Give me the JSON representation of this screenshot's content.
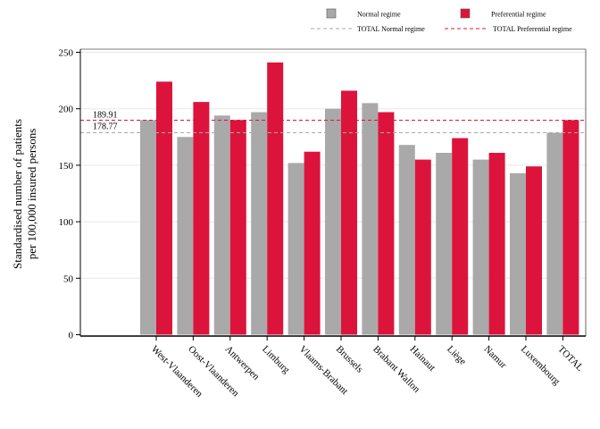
{
  "chart_data": {
    "type": "bar",
    "title": "",
    "xlabel": "",
    "ylabel": "Standardised number of patients per 100,000 insured persons",
    "ylabel_lines": [
      "Standardised number of patients",
      "per 100,000 insured persons"
    ],
    "ylim": [
      0,
      250
    ],
    "yticks": [
      0,
      50,
      100,
      150,
      200,
      250
    ],
    "grid": "horizontal",
    "legend_position": "top-right",
    "categories": [
      "West-Vlaanderen",
      "Oost-Vlaanderen",
      "Antwerpen",
      "Limburg",
      "Vlaams-Brabant",
      "Brussels",
      "Brabant Wallon",
      "Hainaut",
      "Liège",
      "Namur",
      "Luxembourg",
      "TOTAL"
    ],
    "series": [
      {
        "name": "Normal regime",
        "color": "#a9a9a9",
        "values": [
          190,
          175,
          194,
          197,
          152,
          200,
          205,
          168,
          161,
          155,
          143,
          178.77
        ]
      },
      {
        "name": "Preferential regime",
        "color": "#dc143c",
        "values": [
          224,
          206,
          190,
          241,
          162,
          216,
          197,
          155,
          174,
          161,
          149,
          189.91
        ]
      }
    ],
    "reference_lines": [
      {
        "name": "TOTAL Normal regime",
        "value": 178.77,
        "label": "178.77",
        "color": "#a9a9a9",
        "style": "dashed"
      },
      {
        "name": "TOTAL Preferential regime",
        "value": 189.91,
        "label": "189.91",
        "color": "#dc143c",
        "style": "dashed"
      }
    ]
  }
}
